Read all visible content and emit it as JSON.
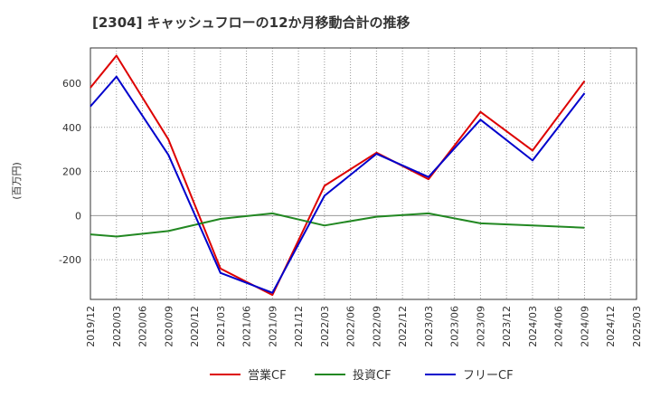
{
  "chart_data": {
    "type": "line",
    "title": "[2304]  キャッシュフローの12か月移動合計の推移",
    "ylabel": "(百万円)",
    "xlabel": "",
    "ylim": [
      -380,
      760
    ],
    "yticks": [
      -200,
      0,
      200,
      400,
      600
    ],
    "ytick_labels": [
      "-200",
      "0",
      "200",
      "400",
      "600"
    ],
    "x_tick_labels": [
      "2019/12",
      "2020/03",
      "2020/06",
      "2020/09",
      "2020/12",
      "2021/03",
      "2021/06",
      "2021/09",
      "2021/12",
      "2022/03",
      "2022/06",
      "2022/09",
      "2022/12",
      "2023/03",
      "2023/06",
      "2023/09",
      "2023/12",
      "2024/03",
      "2024/06",
      "2024/09",
      "2024/12",
      "2025/03"
    ],
    "grid": true,
    "legend_position": "bottom",
    "series": [
      {
        "name": "営業CF",
        "color": "#dd0000",
        "values": [
          580,
          725,
          null,
          345,
          null,
          -240,
          null,
          -360,
          null,
          135,
          null,
          285,
          null,
          165,
          null,
          470,
          null,
          295,
          null,
          610,
          null,
          null
        ]
      },
      {
        "name": "投資CF",
        "color": "#228822",
        "values": [
          -85,
          -95,
          null,
          -70,
          null,
          -15,
          null,
          10,
          null,
          -45,
          null,
          -5,
          null,
          10,
          null,
          -35,
          null,
          -45,
          null,
          -55,
          null,
          null
        ]
      },
      {
        "name": "フリーCF",
        "color": "#0000cc",
        "values": [
          495,
          630,
          null,
          275,
          null,
          -260,
          null,
          -350,
          null,
          90,
          null,
          280,
          null,
          175,
          null,
          435,
          null,
          250,
          null,
          555,
          null,
          null
        ]
      }
    ]
  }
}
